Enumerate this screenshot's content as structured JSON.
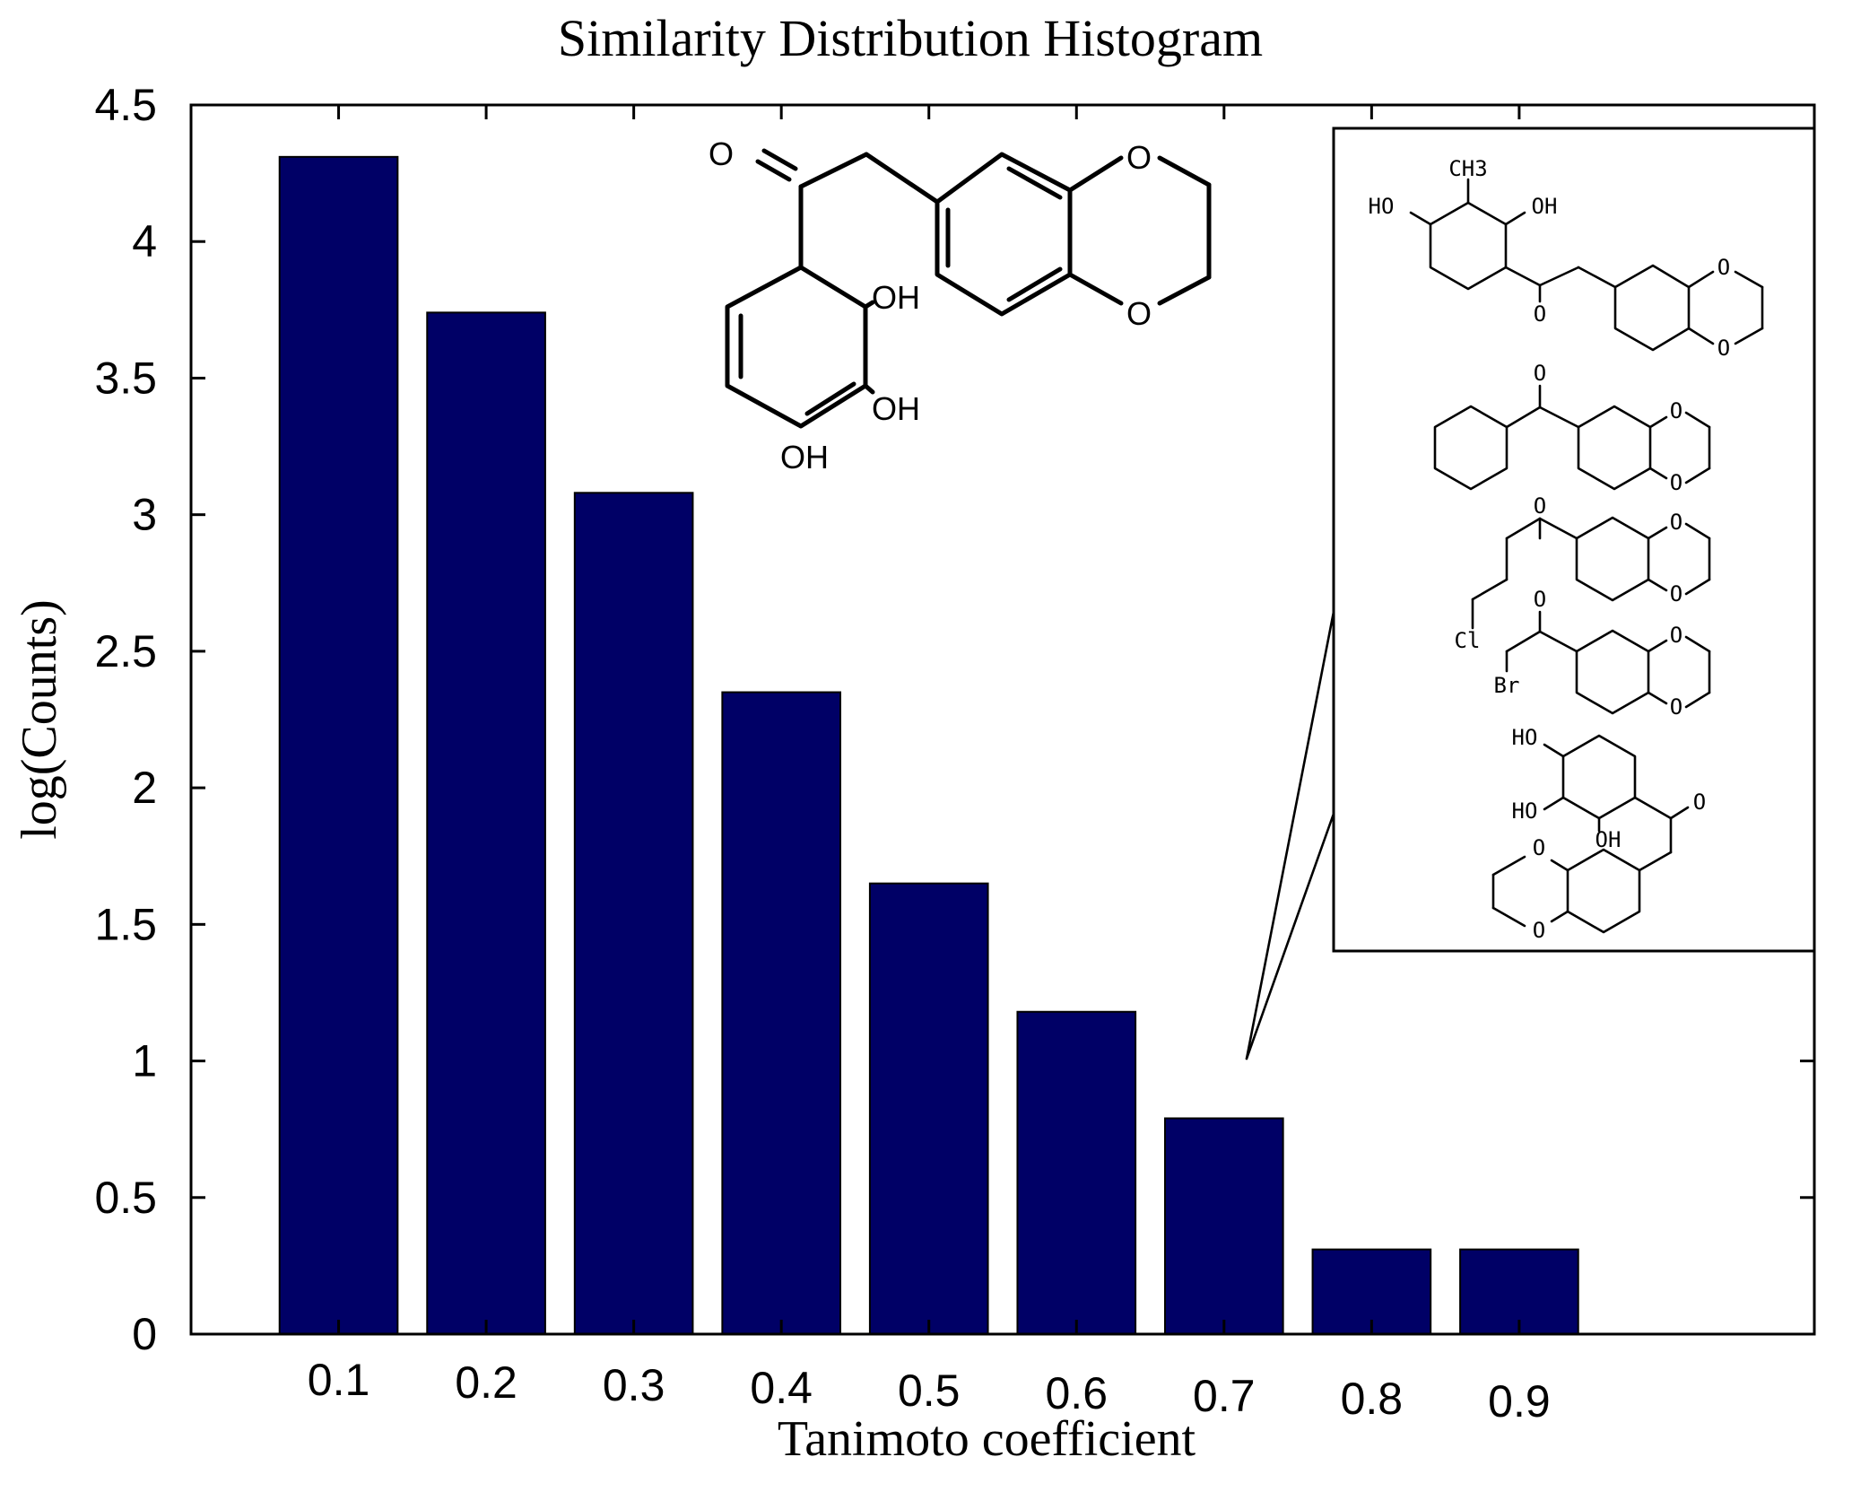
{
  "chart_data": {
    "type": "bar",
    "title": "Similarity Distribution Histogram",
    "xlabel": "Tanimoto coefficient",
    "ylabel": "log(Counts)",
    "categories": [
      "0.1",
      "0.2",
      "0.3",
      "0.4",
      "0.5",
      "0.6",
      "0.7",
      "0.8",
      "0.9"
    ],
    "values": [
      4.31,
      3.74,
      3.08,
      2.35,
      1.65,
      1.18,
      0.79,
      0.31,
      0.31
    ],
    "ylim": [
      0,
      4.5
    ],
    "xlim": [
      0.0,
      1.1
    ],
    "yticks": [
      "0",
      "0.5",
      "1",
      "1.5",
      "2",
      "2.5",
      "3",
      "3.5",
      "4",
      "4.5"
    ],
    "grid": false,
    "bar_color": "#000066",
    "annotations": {
      "query_structure": {
        "atoms": [
          "O",
          "OH",
          "OH",
          "OH",
          "O",
          "O"
        ]
      },
      "inset_structures": {
        "atoms": [
          "CH3",
          "HO",
          "OH",
          "O",
          "O",
          "O",
          "O",
          "O",
          "O",
          "O",
          "O",
          "O",
          "Cl",
          "O",
          "Br",
          "O",
          "O",
          "HO",
          "HO",
          "OH",
          "O",
          "O",
          "O"
        ]
      }
    }
  }
}
